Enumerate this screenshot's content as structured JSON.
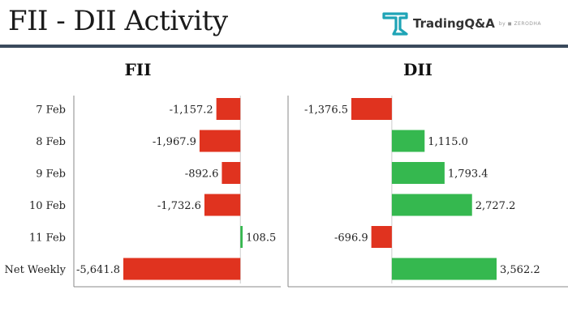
{
  "header": {
    "title": "FII - DII Activity",
    "brand_name": "TradingQ&A",
    "brand_by": "by ◼ ZERODHA",
    "brand_color": "#1fa4b6",
    "rule_color": "#3a4a5c"
  },
  "chart_data": [
    {
      "type": "bar",
      "orientation": "horizontal",
      "title": "FII",
      "categories": [
        "7 Feb",
        "8 Feb",
        "9 Feb",
        "10 Feb",
        "11 Feb",
        "Net Weekly"
      ],
      "values": [
        -1157.2,
        -1967.9,
        -892.6,
        -1732.6,
        108.5,
        -5641.8
      ],
      "value_labels": [
        "-1,157.2",
        "-1,967.9",
        "-892.6",
        "-1,732.6",
        "108.5",
        "-5,641.8"
      ],
      "colors": {
        "positive": "#35b84f",
        "negative": "#e0331f"
      },
      "xlim": [
        -5641.8,
        108.5
      ]
    },
    {
      "type": "bar",
      "orientation": "horizontal",
      "title": "DII",
      "categories": [
        "7 Feb",
        "8 Feb",
        "9 Feb",
        "10 Feb",
        "11 Feb",
        "Net Weekly"
      ],
      "values": [
        -1376.5,
        1115.0,
        1793.4,
        2727.2,
        -696.9,
        3562.2
      ],
      "value_labels": [
        "-1,376.5",
        "1,115.0",
        "1,793.4",
        "2,727.2",
        "-696.9",
        "3,562.2"
      ],
      "colors": {
        "positive": "#35b84f",
        "negative": "#e0331f"
      },
      "xlim": [
        -1376.5,
        3562.2
      ]
    }
  ]
}
